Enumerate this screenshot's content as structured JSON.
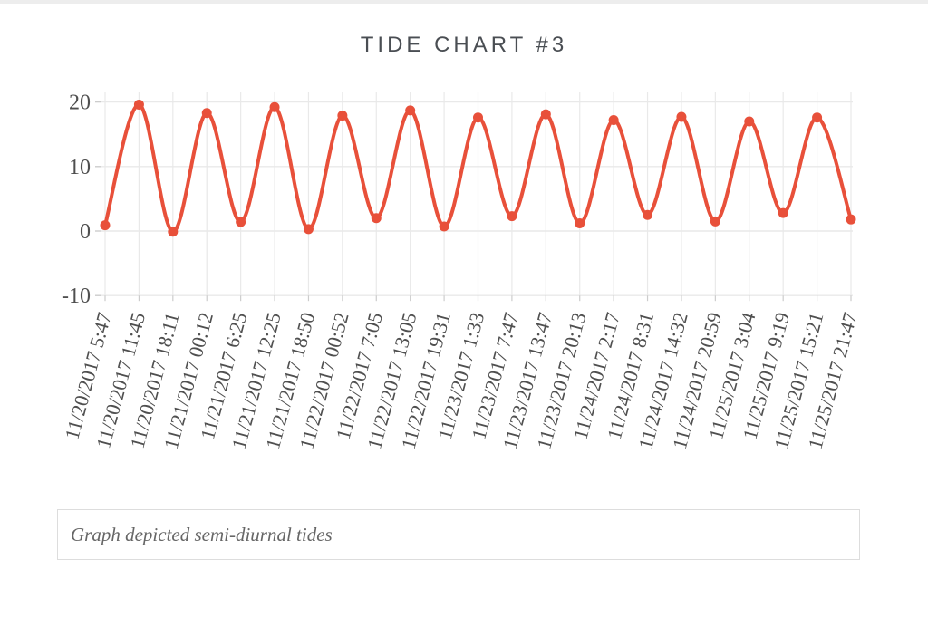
{
  "page": {
    "caption": "Graph depicted semi-diurnal tides"
  },
  "chart_data": {
    "type": "line",
    "title": "TIDE CHART #3",
    "categories": [
      "11/20/2017 5:47",
      "11/20/2017 11:45",
      "11/20/2017 18:11",
      "11/21/2017 00:12",
      "11/21/2017 6:25",
      "11/21/2017 12:25",
      "11/21/2017 18:50",
      "11/22/2017 00:52",
      "11/22/2017 7:05",
      "11/22/2017 13:05",
      "11/22/2017 19:31",
      "11/23/2017 1:33",
      "11/23/2017 7:47",
      "11/23/2017 13:47",
      "11/23/2017 20:13",
      "11/24/2017 2:17",
      "11/24/2017 8:31",
      "11/24/2017 14:32",
      "11/24/2017 20:59",
      "11/25/2017 3:04",
      "11/25/2017 9:19",
      "11/25/2017 15:21",
      "11/25/2017 21:47"
    ],
    "values": [
      0.9,
      19.6,
      -0.1,
      18.3,
      1.4,
      19.2,
      0.3,
      17.9,
      2.0,
      18.7,
      0.7,
      17.6,
      2.3,
      18.1,
      1.2,
      17.2,
      2.5,
      17.7,
      1.5,
      17.0,
      2.8,
      17.6,
      1.8
    ],
    "y_ticks": [
      20,
      10,
      0,
      -10
    ],
    "ylim": [
      -10,
      22
    ],
    "grid": true,
    "legend": "none",
    "colors": {
      "line": "#e8503a",
      "point": "#e8503a",
      "title": "#4a4e53",
      "axis_label": "#4f4f4f",
      "gridline": "#e9e9e9",
      "tick_mark": "#cccccc",
      "caption": "#666666",
      "caption_border": "#dddddd",
      "top_strip": "#ededed"
    }
  }
}
